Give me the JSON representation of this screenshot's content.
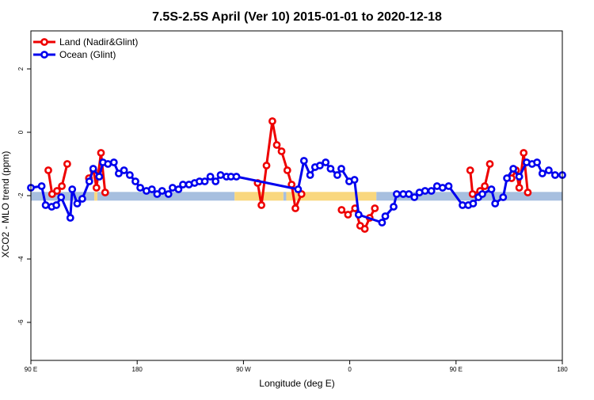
{
  "chart_data": {
    "type": "line",
    "title": "7.5S-2.5S April (Ver 10)   2015-01-01 to 2020-12-18",
    "xlabel": "Longitude (deg E)",
    "ylabel": "XCO2 - MLO trend (ppm)",
    "xlim": [
      90,
      450
    ],
    "ylim": [
      -7.2,
      3.2
    ],
    "x_ticks": [
      {
        "value": 90,
        "label": "90 E"
      },
      {
        "value": 162,
        "label": "180"
      },
      {
        "value": 234,
        "label": "90 W"
      },
      {
        "value": 306,
        "label": "0"
      },
      {
        "value": 378,
        "label": "90 E"
      },
      {
        "value": 450,
        "label": "180"
      }
    ],
    "y_ticks": [
      {
        "value": 2,
        "label": "2"
      },
      {
        "value": 0,
        "label": "0"
      },
      {
        "value": -2,
        "label": "-2"
      },
      {
        "value": -4,
        "label": "-4"
      },
      {
        "value": -6,
        "label": "-6"
      }
    ],
    "legend": {
      "position": "top-left"
    },
    "bands": [
      {
        "color": "#a7bfdf",
        "segments": [
          [
            90,
            133
          ],
          [
            135,
            228
          ],
          [
            261,
            263
          ],
          [
            324,
            450
          ]
        ]
      },
      {
        "color": "#f9d77e",
        "segments": [
          [
            133,
            135
          ],
          [
            228,
            261
          ],
          [
            263,
            324
          ]
        ]
      }
    ],
    "band_y": -2.02,
    "series": [
      {
        "name": "Land (Nadir&Glint)",
        "color": "#ee0000",
        "segments": [
          [
            [
              101.8,
              -1.2
            ],
            [
              104.4,
              -1.95
            ],
            [
              107.7,
              -1.85
            ],
            [
              111.0,
              -1.7
            ],
            [
              114.6,
              -1.0
            ]
          ],
          [
            [
              129.3,
              -1.45
            ],
            [
              132.4,
              -1.2
            ],
            [
              134.4,
              -1.75
            ],
            [
              137.5,
              -0.65
            ],
            [
              140.3,
              -1.9
            ]
          ],
          [
            [
              243.6,
              -1.6
            ],
            [
              246.2,
              -2.3
            ],
            [
              249.6,
              -1.05
            ],
            [
              253.6,
              0.35
            ],
            [
              256.6,
              -0.4
            ],
            [
              259.8,
              -0.6
            ],
            [
              263.7,
              -1.2
            ],
            [
              266.6,
              -1.65
            ],
            [
              269.2,
              -2.4
            ],
            [
              273.3,
              -1.95
            ]
          ],
          [
            [
              300.5,
              -2.45
            ],
            [
              304.8,
              -2.6
            ],
            [
              309.6,
              -2.4
            ],
            [
              313.1,
              -2.95
            ],
            [
              316.2,
              -3.05
            ],
            [
              319.5,
              -2.7
            ],
            [
              323.0,
              -2.4
            ]
          ],
          [
            [
              387.6,
              -1.2
            ],
            [
              389.2,
              -1.95
            ],
            [
              394.3,
              -1.85
            ],
            [
              397.5,
              -1.7
            ],
            [
              400.9,
              -1.0
            ]
          ],
          [
            [
              415.6,
              -1.45
            ],
            [
              418.6,
              -1.2
            ],
            [
              420.8,
              -1.75
            ],
            [
              423.8,
              -0.65
            ],
            [
              426.6,
              -1.9
            ]
          ]
        ]
      },
      {
        "name": "Ocean (Glint)",
        "color": "#0000ee",
        "segments": [
          [
            [
              90.0,
              -1.75
            ],
            [
              97.3,
              -1.7
            ],
            [
              100.0,
              -2.3
            ],
            [
              104.1,
              -2.35
            ],
            [
              107.2,
              -2.3
            ],
            [
              110.5,
              -2.05
            ],
            [
              116.7,
              -2.7
            ],
            [
              118.0,
              -1.8
            ],
            [
              121.4,
              -2.25
            ],
            [
              124.8,
              -2.1
            ],
            [
              129.6,
              -1.55
            ],
            [
              132.2,
              -1.15
            ],
            [
              136.3,
              -1.4
            ],
            [
              138.8,
              -0.95
            ],
            [
              142.2,
              -1.0
            ],
            [
              146.2,
              -0.95
            ],
            [
              149.5,
              -1.3
            ],
            [
              153.1,
              -1.2
            ],
            [
              157.0,
              -1.35
            ],
            [
              160.8,
              -1.55
            ],
            [
              164.1,
              -1.75
            ],
            [
              168.3,
              -1.85
            ],
            [
              172.0,
              -1.8
            ],
            [
              175.5,
              -1.95
            ],
            [
              178.9,
              -1.85
            ],
            [
              183.2,
              -1.95
            ],
            [
              186.0,
              -1.75
            ],
            [
              190.0,
              -1.8
            ],
            [
              193.0,
              -1.65
            ],
            [
              197.1,
              -1.65
            ],
            [
              200.9,
              -1.6
            ],
            [
              204.2,
              -1.55
            ],
            [
              207.8,
              -1.55
            ],
            [
              211.6,
              -1.4
            ],
            [
              215.1,
              -1.55
            ],
            [
              218.5,
              -1.35
            ],
            [
              222.5,
              -1.4
            ],
            [
              225.5,
              -1.4
            ],
            [
              229.2,
              -1.4
            ],
            [
              271.0,
              -1.8
            ],
            [
              275.0,
              -0.9
            ],
            [
              279.2,
              -1.35
            ],
            [
              282.5,
              -1.1
            ],
            [
              285.8,
              -1.05
            ],
            [
              289.7,
              -0.95
            ],
            [
              293.0,
              -1.15
            ],
            [
              297.6,
              -1.35
            ],
            [
              300.3,
              -1.15
            ],
            [
              305.6,
              -1.55
            ],
            [
              309.2,
              -1.5
            ],
            [
              312.0,
              -2.6
            ],
            [
              327.9,
              -2.85
            ],
            [
              330.1,
              -2.65
            ],
            [
              335.7,
              -2.35
            ],
            [
              337.8,
              -1.95
            ],
            [
              342.2,
              -1.95
            ],
            [
              346.0,
              -1.95
            ],
            [
              349.8,
              -2.05
            ],
            [
              353.2,
              -1.9
            ],
            [
              357.0,
              -1.85
            ],
            [
              361.3,
              -1.85
            ],
            [
              365.1,
              -1.7
            ],
            [
              368.9,
              -1.75
            ],
            [
              373.0,
              -1.7
            ],
            [
              382.4,
              -2.3
            ],
            [
              386.3,
              -2.3
            ],
            [
              389.6,
              -2.25
            ],
            [
              393.2,
              -2.05
            ],
            [
              395.8,
              -1.95
            ],
            [
              402.0,
              -1.8
            ],
            [
              404.5,
              -2.25
            ],
            [
              409.9,
              -2.05
            ],
            [
              412.5,
              -1.45
            ],
            [
              416.8,
              -1.15
            ],
            [
              420.8,
              -1.4
            ],
            [
              425.8,
              -0.95
            ],
            [
              429.5,
              -1.0
            ],
            [
              432.9,
              -0.95
            ],
            [
              436.5,
              -1.3
            ],
            [
              440.8,
              -1.2
            ],
            [
              445.1,
              -1.35
            ],
            [
              450.0,
              -1.35
            ]
          ]
        ]
      }
    ]
  }
}
